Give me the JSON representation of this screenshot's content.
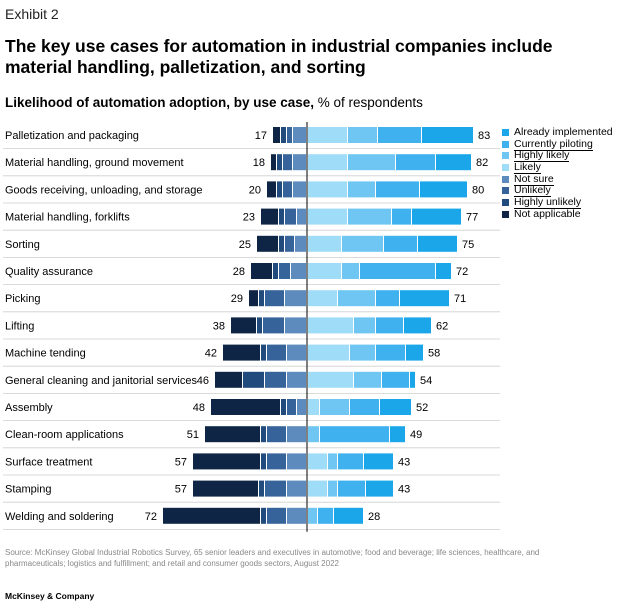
{
  "header": {
    "exhibit": "Exhibit 2",
    "title": "The key use cases for automation in industrial companies include material handling, palletization, and sorting",
    "subtitle_bold": "Likelihood of automation adoption, by use case,",
    "subtitle_rest": " % of respondents"
  },
  "footer": {
    "source": "Source: McKinsey Global Industrial Robotics Survey, 65 senior leaders and executives in automotive; food and beverage; life sciences, healthcare, and pharmaceuticals; logistics and fulfillment; and retail and consumer goods sectors, August 2022",
    "brand": "McKinsey & Company"
  },
  "chart_data": {
    "type": "bar",
    "orientation": "horizontal-diverging",
    "unit": "% of respondents",
    "categories": [
      "Palletization and packaging",
      "Material handling, ground movement",
      "Goods receiving, unloading, and storage",
      "Material handling, forklifts",
      "Sorting",
      "Quality assurance",
      "Picking",
      "Lifting",
      "Machine tending",
      "General cleaning and janitorial services",
      "Assembly",
      "Clean-room applications",
      "Surface treatment",
      "Stamping",
      "Welding and soldering"
    ],
    "positive_totals": [
      83,
      82,
      80,
      77,
      75,
      72,
      71,
      62,
      58,
      54,
      52,
      49,
      43,
      43,
      28
    ],
    "negative_totals": [
      17,
      18,
      20,
      23,
      25,
      28,
      29,
      38,
      42,
      46,
      48,
      51,
      57,
      57,
      72
    ],
    "series": [
      {
        "name": "Already implemented",
        "side": "positive",
        "color": "#1aa6e8",
        "values": [
          26,
          18,
          24,
          25,
          20,
          8,
          25,
          14,
          9,
          3,
          16,
          8,
          15,
          14,
          15
        ]
      },
      {
        "name": "Currently piloting",
        "side": "positive",
        "color": "#3eb1ee",
        "values": [
          22,
          20,
          22,
          10,
          17,
          38,
          12,
          14,
          15,
          14,
          15,
          35,
          13,
          14,
          8
        ]
      },
      {
        "name": "Highly likely",
        "side": "positive",
        "color": "#6fc6f3",
        "values": [
          15,
          24,
          14,
          22,
          21,
          9,
          19,
          11,
          13,
          14,
          15,
          6,
          5,
          5,
          5
        ]
      },
      {
        "name": "Likely",
        "side": "positive",
        "color": "#9fdcf8",
        "values": [
          20,
          20,
          20,
          20,
          17,
          17,
          15,
          23,
          21,
          23,
          6,
          0,
          10,
          10,
          0
        ]
      },
      {
        "name": "Not sure",
        "side": "negative",
        "color": "#5d8bbd",
        "values": [
          7,
          7,
          7,
          5,
          6,
          8,
          11,
          11,
          10,
          10,
          5,
          10,
          10,
          10,
          10
        ]
      },
      {
        "name": "Unlikely",
        "side": "negative",
        "color": "#35639a",
        "values": [
          3,
          5,
          5,
          6,
          5,
          6,
          10,
          11,
          10,
          11,
          5,
          10,
          10,
          11,
          10
        ]
      },
      {
        "name": "Highly unlikely",
        "side": "negative",
        "color": "#214a7d",
        "values": [
          3,
          3,
          3,
          3,
          3,
          3,
          3,
          3,
          3,
          11,
          3,
          3,
          3,
          3,
          3
        ]
      },
      {
        "name": "Not applicable",
        "side": "negative",
        "color": "#0f2545",
        "values": [
          4,
          3,
          5,
          9,
          11,
          11,
          5,
          13,
          19,
          14,
          35,
          28,
          34,
          33,
          49
        ]
      }
    ]
  }
}
